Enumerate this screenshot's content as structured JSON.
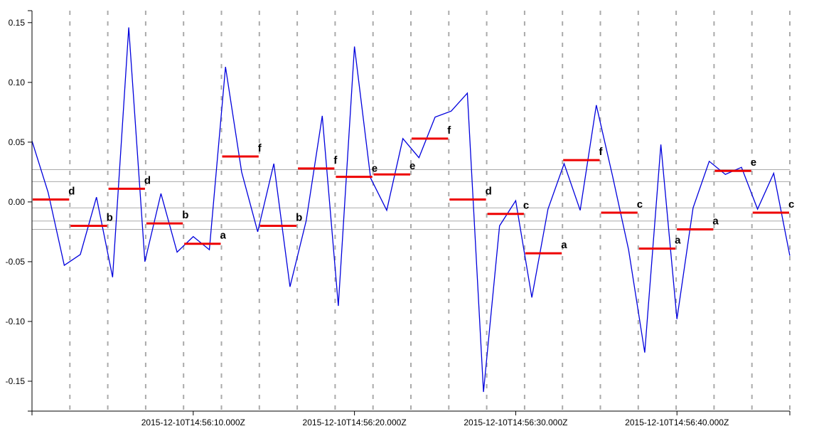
{
  "chart_data": {
    "type": "line",
    "title": "",
    "xlabel": "",
    "ylabel": "",
    "x_tick_labels": [
      "2015-12-10T14:56:10.000Z",
      "2015-12-10T14:56:20.000Z",
      "2015-12-10T14:56:30.000Z",
      "2015-12-10T14:56:40.000Z"
    ],
    "x_ticks_seconds": [
      10,
      20,
      30,
      40
    ],
    "xlim_seconds": [
      0,
      47
    ],
    "y_tick_labels": [
      "0.15",
      "0.10",
      "0.05",
      "0.00",
      "-0.05",
      "-0.10",
      "-0.15"
    ],
    "y_ticks": [
      0.15,
      0.1,
      0.05,
      0.0,
      -0.05,
      -0.1,
      -0.15
    ],
    "ylim": [
      -0.175,
      0.16
    ],
    "grid": "vertical dashed grid lines every 2.35 seconds",
    "vertical_grid_seconds": [
      2.35,
      4.7,
      7.05,
      9.4,
      11.75,
      14.1,
      16.45,
      18.8,
      21.15,
      23.5,
      25.85,
      28.2,
      30.55,
      32.9,
      35.25,
      37.6,
      39.95,
      42.3,
      44.65,
      47.0
    ],
    "horizontal_reference_lines": [
      0.027,
      0.017,
      -0.005,
      -0.016,
      -0.023
    ],
    "colors": {
      "series": "#0000dd",
      "segments": "#ee0000",
      "grid": "#aaaaaa",
      "reference": "#aaaaaa",
      "axis": "#000000"
    },
    "series": [
      {
        "values": [
          [
            0.0,
            0.051
          ],
          [
            1.0,
            0.008
          ],
          [
            2.0,
            -0.053
          ],
          [
            3.0,
            -0.044
          ],
          [
            4.0,
            0.004
          ],
          [
            5.0,
            -0.063
          ],
          [
            6.0,
            0.146
          ],
          [
            7.0,
            -0.05
          ],
          [
            8.0,
            0.007
          ],
          [
            9.0,
            -0.042
          ],
          [
            10.0,
            -0.029
          ],
          [
            11.0,
            -0.04
          ],
          [
            12.0,
            0.113
          ],
          [
            13.0,
            0.025
          ],
          [
            14.0,
            -0.025
          ],
          [
            15.0,
            0.032
          ],
          [
            16.0,
            -0.071
          ],
          [
            17.0,
            -0.016
          ],
          [
            18.0,
            0.072
          ],
          [
            19.0,
            -0.087
          ],
          [
            20.0,
            0.13
          ],
          [
            21.0,
            0.02
          ],
          [
            22.0,
            -0.007
          ],
          [
            23.0,
            0.053
          ],
          [
            24.0,
            0.037
          ],
          [
            25.0,
            0.071
          ],
          [
            26.0,
            0.076
          ],
          [
            27.0,
            0.091
          ],
          [
            28.0,
            -0.159
          ],
          [
            29.0,
            -0.02
          ],
          [
            30.0,
            0.001
          ],
          [
            31.0,
            -0.08
          ],
          [
            32.0,
            -0.006
          ],
          [
            33.0,
            0.032
          ],
          [
            34.0,
            -0.007
          ],
          [
            35.0,
            0.081
          ],
          [
            36.0,
            0.022
          ],
          [
            37.0,
            -0.04
          ],
          [
            38.0,
            -0.126
          ],
          [
            39.0,
            0.048
          ],
          [
            40.0,
            -0.098
          ],
          [
            41.0,
            -0.005
          ],
          [
            42.0,
            0.034
          ],
          [
            43.0,
            0.023
          ],
          [
            44.0,
            0.029
          ],
          [
            45.0,
            -0.006
          ],
          [
            46.0,
            0.024
          ],
          [
            47.0,
            -0.045
          ]
        ]
      }
    ],
    "segments": [
      {
        "start": 0.0,
        "end": 2.35,
        "value": 0.002,
        "label": "d"
      },
      {
        "start": 2.35,
        "end": 4.7,
        "value": -0.02,
        "label": "b"
      },
      {
        "start": 4.7,
        "end": 7.05,
        "value": 0.011,
        "label": "d"
      },
      {
        "start": 7.05,
        "end": 9.4,
        "value": -0.018,
        "label": "b"
      },
      {
        "start": 9.4,
        "end": 11.75,
        "value": -0.035,
        "label": "a"
      },
      {
        "start": 11.75,
        "end": 14.1,
        "value": 0.038,
        "label": "f"
      },
      {
        "start": 14.1,
        "end": 16.45,
        "value": -0.02,
        "label": "b"
      },
      {
        "start": 16.45,
        "end": 18.8,
        "value": 0.028,
        "label": "f"
      },
      {
        "start": 18.8,
        "end": 21.15,
        "value": 0.021,
        "label": "e"
      },
      {
        "start": 21.15,
        "end": 23.5,
        "value": 0.023,
        "label": "e"
      },
      {
        "start": 23.5,
        "end": 25.85,
        "value": 0.053,
        "label": "f"
      },
      {
        "start": 25.85,
        "end": 28.2,
        "value": 0.002,
        "label": "d"
      },
      {
        "start": 28.2,
        "end": 30.55,
        "value": -0.01,
        "label": "c"
      },
      {
        "start": 30.55,
        "end": 32.9,
        "value": -0.043,
        "label": "a"
      },
      {
        "start": 32.9,
        "end": 35.25,
        "value": 0.035,
        "label": "f"
      },
      {
        "start": 35.25,
        "end": 37.6,
        "value": -0.009,
        "label": "c"
      },
      {
        "start": 37.6,
        "end": 39.95,
        "value": -0.039,
        "label": "a"
      },
      {
        "start": 39.95,
        "end": 42.3,
        "value": -0.023,
        "label": "a"
      },
      {
        "start": 42.3,
        "end": 44.65,
        "value": 0.026,
        "label": "e"
      },
      {
        "start": 44.65,
        "end": 47.0,
        "value": -0.009,
        "label": "c"
      }
    ]
  }
}
